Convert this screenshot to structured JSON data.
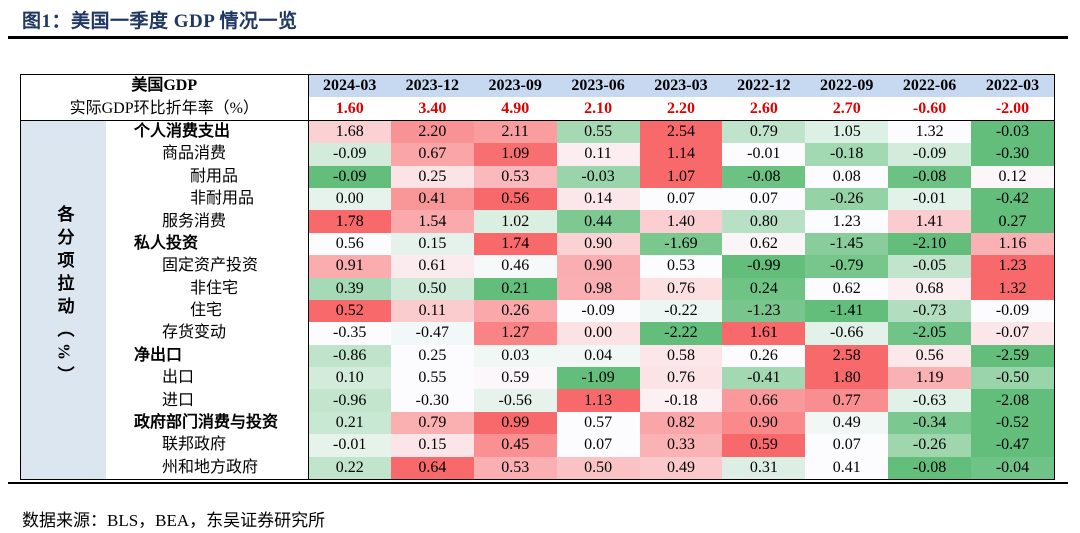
{
  "title": "图1：美国一季度 GDP 情况一览",
  "source": "数据来源：BLS，BEA，东吴证券研究所",
  "colors": {
    "red": "#F8696B",
    "green": "#63BE7B",
    "white": "#FCFCFF",
    "rate_text": "#E00000",
    "header_bg": "#C6D9F0"
  },
  "chart_data": {
    "type": "table",
    "header_label": "美国GDP",
    "rate_label": "实际GDP环比折年率（%）",
    "side_label": "各分项拉动（%）",
    "columns": [
      "2024-03",
      "2023-12",
      "2023-09",
      "2023-06",
      "2023-03",
      "2022-12",
      "2022-09",
      "2022-06",
      "2022-03"
    ],
    "gdp_rate": [
      "1.60",
      "3.40",
      "4.90",
      "2.10",
      "2.20",
      "2.60",
      "2.70",
      "-0.60",
      "-2.00"
    ],
    "rows": [
      {
        "label": "个人消费支出",
        "level": 0,
        "values": [
          "1.68",
          "2.20",
          "2.11",
          "0.55",
          "2.54",
          "0.79",
          "1.05",
          "1.32",
          "-0.03"
        ]
      },
      {
        "label": "商品消费",
        "level": 1,
        "values": [
          "-0.09",
          "0.67",
          "1.09",
          "0.11",
          "1.14",
          "-0.01",
          "-0.18",
          "-0.09",
          "-0.30"
        ]
      },
      {
        "label": "耐用品",
        "level": 2,
        "values": [
          "-0.09",
          "0.25",
          "0.53",
          "-0.03",
          "1.07",
          "-0.08",
          "0.08",
          "-0.08",
          "0.12"
        ]
      },
      {
        "label": "非耐用品",
        "level": 2,
        "values": [
          "0.00",
          "0.41",
          "0.56",
          "0.14",
          "0.07",
          "0.07",
          "-0.26",
          "-0.01",
          "-0.42"
        ]
      },
      {
        "label": "服务消费",
        "level": 1,
        "values": [
          "1.78",
          "1.54",
          "1.02",
          "0.44",
          "1.40",
          "0.80",
          "1.23",
          "1.41",
          "0.27"
        ]
      },
      {
        "label": "私人投资",
        "level": 0,
        "values": [
          "0.56",
          "0.15",
          "1.74",
          "0.90",
          "-1.69",
          "0.62",
          "-1.45",
          "-2.10",
          "1.16"
        ]
      },
      {
        "label": "固定资产投资",
        "level": 1,
        "values": [
          "0.91",
          "0.61",
          "0.46",
          "0.90",
          "0.53",
          "-0.99",
          "-0.79",
          "-0.05",
          "1.23"
        ]
      },
      {
        "label": "非住宅",
        "level": 2,
        "values": [
          "0.39",
          "0.50",
          "0.21",
          "0.98",
          "0.76",
          "0.24",
          "0.62",
          "0.68",
          "1.32"
        ]
      },
      {
        "label": "住宅",
        "level": 2,
        "values": [
          "0.52",
          "0.11",
          "0.26",
          "-0.09",
          "-0.22",
          "-1.23",
          "-1.41",
          "-0.73",
          "-0.09"
        ]
      },
      {
        "label": "存货变动",
        "level": 1,
        "values": [
          "-0.35",
          "-0.47",
          "1.27",
          "0.00",
          "-2.22",
          "1.61",
          "-0.66",
          "-2.05",
          "-0.07"
        ]
      },
      {
        "label": "净出口",
        "level": 0,
        "values": [
          "-0.86",
          "0.25",
          "0.03",
          "0.04",
          "0.58",
          "0.26",
          "2.58",
          "0.56",
          "-2.59"
        ]
      },
      {
        "label": "出口",
        "level": 1,
        "values": [
          "0.10",
          "0.55",
          "0.59",
          "-1.09",
          "0.76",
          "-0.41",
          "1.80",
          "1.19",
          "-0.50"
        ]
      },
      {
        "label": "进口",
        "level": 1,
        "values": [
          "-0.96",
          "-0.30",
          "-0.56",
          "1.13",
          "-0.18",
          "0.66",
          "0.77",
          "-0.63",
          "-2.08"
        ]
      },
      {
        "label": "政府部门消费与投资",
        "level": 0,
        "values": [
          "0.21",
          "0.79",
          "0.99",
          "0.57",
          "0.82",
          "0.90",
          "0.49",
          "-0.34",
          "-0.52"
        ]
      },
      {
        "label": "联邦政府",
        "level": 1,
        "values": [
          "-0.01",
          "0.15",
          "0.45",
          "0.07",
          "0.33",
          "0.59",
          "0.07",
          "-0.26",
          "-0.47"
        ]
      },
      {
        "label": "州和地方政府",
        "level": 1,
        "values": [
          "0.22",
          "0.64",
          "0.53",
          "0.50",
          "0.49",
          "0.31",
          "0.41",
          "-0.08",
          "-0.04"
        ]
      }
    ]
  }
}
